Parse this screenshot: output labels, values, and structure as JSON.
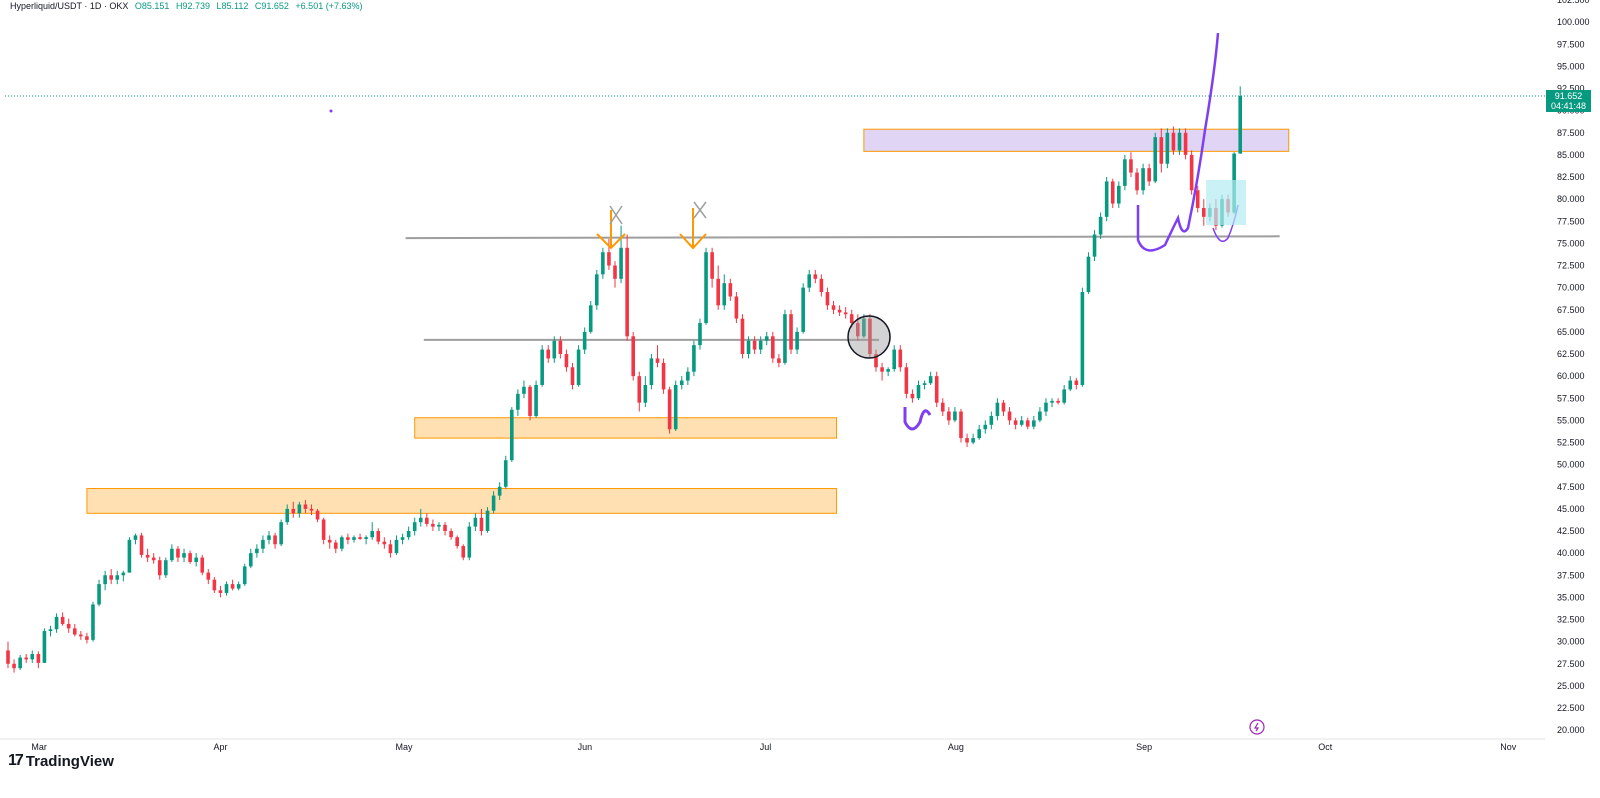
{
  "legend": {
    "symbol": "Hyperliquid/USDT · 1D · OKX",
    "open": "O85.151",
    "high": "H92.739",
    "low": "L85.112",
    "close": "C91.652",
    "change": "+6.501 (+7.63%)"
  },
  "price_tag": {
    "price": "91.652",
    "countdown": "04:41:48"
  },
  "brand": {
    "logo": "17",
    "name": "TradingView"
  },
  "colors": {
    "up": "#089981",
    "down": "#f23645",
    "zone_orange": "#ffe0b2",
    "zone_orange_border": "#ff9800",
    "zone_purple": "#e1d5f5",
    "drawing": "#7e3ff2",
    "hline": "#9e9e9e"
  },
  "chart_data": {
    "type": "candlestick",
    "x_axis": {
      "labels": [
        "Mar",
        "Apr",
        "May",
        "Jun",
        "Jul",
        "Aug",
        "Sep",
        "Oct",
        "Nov"
      ]
    },
    "y_axis": {
      "ylim": [
        19.0,
        102.5
      ],
      "tick_labels": [
        "102.500",
        "100.000",
        "97.500",
        "95.000",
        "92.500",
        "90.000",
        "87.500",
        "85.000",
        "82.500",
        "80.000",
        "77.500",
        "75.000",
        "72.500",
        "70.000",
        "67.500",
        "65.000",
        "62.500",
        "60.000",
        "57.500",
        "55.000",
        "52.500",
        "50.000",
        "47.500",
        "45.000",
        "42.500",
        "40.000",
        "37.500",
        "35.000",
        "32.500",
        "30.000",
        "27.500",
        "25.000",
        "22.500",
        "20.000"
      ]
    },
    "last_price": 91.652,
    "candles": [
      [
        29.0,
        30.0,
        27.0,
        27.5
      ],
      [
        27.5,
        28.0,
        26.5,
        27.0
      ],
      [
        27.0,
        28.5,
        26.8,
        28.2
      ],
      [
        28.2,
        28.6,
        27.6,
        28.0
      ],
      [
        28.0,
        29.0,
        27.6,
        28.6
      ],
      [
        28.6,
        28.9,
        27.0,
        27.6
      ],
      [
        27.6,
        31.5,
        27.6,
        31.2
      ],
      [
        31.2,
        31.8,
        30.6,
        31.4
      ],
      [
        31.4,
        33.2,
        31.0,
        32.8
      ],
      [
        32.8,
        33.3,
        31.8,
        32.0
      ],
      [
        32.0,
        32.6,
        31.0,
        31.5
      ],
      [
        31.5,
        32.0,
        30.6,
        30.8
      ],
      [
        30.8,
        31.2,
        30.2,
        30.6
      ],
      [
        30.6,
        31.0,
        29.8,
        30.2
      ],
      [
        30.2,
        34.5,
        30.0,
        34.2
      ],
      [
        34.2,
        37.0,
        34.0,
        36.5
      ],
      [
        36.5,
        38.0,
        35.8,
        37.5
      ],
      [
        37.5,
        38.2,
        36.5,
        37.0
      ],
      [
        37.0,
        38.0,
        36.5,
        37.5
      ],
      [
        37.5,
        38.0,
        36.8,
        37.8
      ],
      [
        37.8,
        41.8,
        37.8,
        41.5
      ],
      [
        41.5,
        42.2,
        41.0,
        42.0
      ],
      [
        42.0,
        42.3,
        39.5,
        39.8
      ],
      [
        39.8,
        40.5,
        39.0,
        39.5
      ],
      [
        39.5,
        40.0,
        38.8,
        39.2
      ],
      [
        39.2,
        39.6,
        37.0,
        37.5
      ],
      [
        37.5,
        39.5,
        37.2,
        39.2
      ],
      [
        39.2,
        41.0,
        39.0,
        40.5
      ],
      [
        40.5,
        40.8,
        39.0,
        39.5
      ],
      [
        39.5,
        40.5,
        39.0,
        40.0
      ],
      [
        40.0,
        40.3,
        38.8,
        39.0
      ],
      [
        39.0,
        40.0,
        38.5,
        39.5
      ],
      [
        39.5,
        39.8,
        37.5,
        37.8
      ],
      [
        37.8,
        38.2,
        36.5,
        37.0
      ],
      [
        37.0,
        37.3,
        35.5,
        35.8
      ],
      [
        35.8,
        36.3,
        35.0,
        35.5
      ],
      [
        35.5,
        36.8,
        35.2,
        36.5
      ],
      [
        36.5,
        37.0,
        35.8,
        36.0
      ],
      [
        36.0,
        36.8,
        35.8,
        36.5
      ],
      [
        36.5,
        38.8,
        36.3,
        38.5
      ],
      [
        38.5,
        40.5,
        38.3,
        40.0
      ],
      [
        40.0,
        41.0,
        39.5,
        40.5
      ],
      [
        40.5,
        42.0,
        40.0,
        41.5
      ],
      [
        41.5,
        42.5,
        41.0,
        42.0
      ],
      [
        42.0,
        42.3,
        40.5,
        41.0
      ],
      [
        41.0,
        43.8,
        40.8,
        43.5
      ],
      [
        43.5,
        45.5,
        43.2,
        45.0
      ],
      [
        45.0,
        45.8,
        44.0,
        44.5
      ],
      [
        44.5,
        45.8,
        44.0,
        45.5
      ],
      [
        45.5,
        46.0,
        44.5,
        45.0
      ],
      [
        45.0,
        45.5,
        44.3,
        44.8
      ],
      [
        44.8,
        45.0,
        43.5,
        43.8
      ],
      [
        43.8,
        44.0,
        41.0,
        41.5
      ],
      [
        41.5,
        42.0,
        40.5,
        41.2
      ],
      [
        41.2,
        41.5,
        40.0,
        40.5
      ],
      [
        40.5,
        42.0,
        40.2,
        41.8
      ],
      [
        41.8,
        42.2,
        41.0,
        41.5
      ],
      [
        41.5,
        42.0,
        41.2,
        41.8
      ],
      [
        41.8,
        42.2,
        41.5,
        41.6
      ],
      [
        41.6,
        42.0,
        41.0,
        41.8
      ],
      [
        41.8,
        43.5,
        41.5,
        42.5
      ],
      [
        42.5,
        42.8,
        41.0,
        41.3
      ],
      [
        41.3,
        41.8,
        40.5,
        41.0
      ],
      [
        41.0,
        41.5,
        39.5,
        40.0
      ],
      [
        40.0,
        42.0,
        39.8,
        41.5
      ],
      [
        41.5,
        42.2,
        41.0,
        41.8
      ],
      [
        41.8,
        43.0,
        41.5,
        42.5
      ],
      [
        42.5,
        44.0,
        42.0,
        43.5
      ],
      [
        43.5,
        45.0,
        43.0,
        44.0
      ],
      [
        44.0,
        44.5,
        43.0,
        43.3
      ],
      [
        43.3,
        43.8,
        42.5,
        43.0
      ],
      [
        43.0,
        43.5,
        42.5,
        43.2
      ],
      [
        43.2,
        43.5,
        42.0,
        42.5
      ],
      [
        42.5,
        42.8,
        41.5,
        41.8
      ],
      [
        41.8,
        42.0,
        40.5,
        40.8
      ],
      [
        40.8,
        41.0,
        39.2,
        39.5
      ],
      [
        39.5,
        43.5,
        39.2,
        43.0
      ],
      [
        43.0,
        44.5,
        42.5,
        44.0
      ],
      [
        44.0,
        45.0,
        42.0,
        42.5
      ],
      [
        42.5,
        45.2,
        42.3,
        44.8
      ],
      [
        44.8,
        47.0,
        44.5,
        46.5
      ],
      [
        46.5,
        48.0,
        46.0,
        47.5
      ],
      [
        47.5,
        51.0,
        47.3,
        50.5
      ],
      [
        50.5,
        56.5,
        50.3,
        56.2
      ],
      [
        56.2,
        58.5,
        55.5,
        58.0
      ],
      [
        58.0,
        59.5,
        57.5,
        58.8
      ],
      [
        58.8,
        59.0,
        55.0,
        55.5
      ],
      [
        55.5,
        59.5,
        55.3,
        59.0
      ],
      [
        59.0,
        63.5,
        58.8,
        63.0
      ],
      [
        63.0,
        63.5,
        61.5,
        62.0
      ],
      [
        62.0,
        64.5,
        61.5,
        64.0
      ],
      [
        64.0,
        64.5,
        62.0,
        62.5
      ],
      [
        62.5,
        63.0,
        60.5,
        61.0
      ],
      [
        61.0,
        61.5,
        58.5,
        59.0
      ],
      [
        59.0,
        63.5,
        58.8,
        63.0
      ],
      [
        63.0,
        65.5,
        62.5,
        65.0
      ],
      [
        65.0,
        68.5,
        64.8,
        68.0
      ],
      [
        68.0,
        72.0,
        67.5,
        71.5
      ],
      [
        71.5,
        74.5,
        71.0,
        74.0
      ],
      [
        74.0,
        75.5,
        72.0,
        72.5
      ],
      [
        72.5,
        73.0,
        70.0,
        71.0
      ],
      [
        71.0,
        77.0,
        70.5,
        74.5
      ],
      [
        74.5,
        76.0,
        64.0,
        64.5
      ],
      [
        64.5,
        65.0,
        59.5,
        60.0
      ],
      [
        60.0,
        60.5,
        56.0,
        57.0
      ],
      [
        57.0,
        60.0,
        56.5,
        59.0
      ],
      [
        59.0,
        62.5,
        58.5,
        62.0
      ],
      [
        62.0,
        63.5,
        61.0,
        61.5
      ],
      [
        61.5,
        62.0,
        58.0,
        58.5
      ],
      [
        58.5,
        58.8,
        53.5,
        54.0
      ],
      [
        54.0,
        59.5,
        53.8,
        59.0
      ],
      [
        59.0,
        60.0,
        58.5,
        59.5
      ],
      [
        59.5,
        61.0,
        59.0,
        60.5
      ],
      [
        60.5,
        64.0,
        60.0,
        63.5
      ],
      [
        63.5,
        66.5,
        63.0,
        66.0
      ],
      [
        66.0,
        74.5,
        65.8,
        74.0
      ],
      [
        74.0,
        74.5,
        70.0,
        71.0
      ],
      [
        71.0,
        72.5,
        67.5,
        68.0
      ],
      [
        68.0,
        71.5,
        67.5,
        70.5
      ],
      [
        70.5,
        71.0,
        68.5,
        69.0
      ],
      [
        69.0,
        69.5,
        66.0,
        66.5
      ],
      [
        66.5,
        67.0,
        62.0,
        62.5
      ],
      [
        62.5,
        64.5,
        62.0,
        64.0
      ],
      [
        64.0,
        64.5,
        62.5,
        63.0
      ],
      [
        63.0,
        64.5,
        62.5,
        64.0
      ],
      [
        64.0,
        65.0,
        63.5,
        64.5
      ],
      [
        64.5,
        65.0,
        61.5,
        62.0
      ],
      [
        62.0,
        62.5,
        61.0,
        61.5
      ],
      [
        61.5,
        67.5,
        61.3,
        67.0
      ],
      [
        67.0,
        67.5,
        62.5,
        63.0
      ],
      [
        63.0,
        65.5,
        62.5,
        65.0
      ],
      [
        65.0,
        70.5,
        64.8,
        70.0
      ],
      [
        70.0,
        72.0,
        69.5,
        71.5
      ],
      [
        71.5,
        72.0,
        70.5,
        71.0
      ],
      [
        71.0,
        71.5,
        69.0,
        69.5
      ],
      [
        69.5,
        70.0,
        67.5,
        68.0
      ],
      [
        68.0,
        68.5,
        67.0,
        67.5
      ],
      [
        67.5,
        68.0,
        66.8,
        67.2
      ],
      [
        67.2,
        67.8,
        66.5,
        67.0
      ],
      [
        67.0,
        67.5,
        65.5,
        66.0
      ],
      [
        66.0,
        67.0,
        64.0,
        64.5
      ],
      [
        64.5,
        67.0,
        64.3,
        66.5
      ],
      [
        66.5,
        67.0,
        62.0,
        62.5
      ],
      [
        62.5,
        63.0,
        60.5,
        61.0
      ],
      [
        61.0,
        61.5,
        59.5,
        60.5
      ],
      [
        60.5,
        61.0,
        60.0,
        60.8
      ],
      [
        60.8,
        63.5,
        60.5,
        63.0
      ],
      [
        63.0,
        63.5,
        60.5,
        61.0
      ],
      [
        61.0,
        61.5,
        57.5,
        58.0
      ],
      [
        58.0,
        58.5,
        57.0,
        57.5
      ],
      [
        57.5,
        59.5,
        57.3,
        59.0
      ],
      [
        59.0,
        59.5,
        58.5,
        59.2
      ],
      [
        59.2,
        60.5,
        59.0,
        60.0
      ],
      [
        60.0,
        60.5,
        56.5,
        57.0
      ],
      [
        57.0,
        57.5,
        55.5,
        56.0
      ],
      [
        56.0,
        56.5,
        54.5,
        55.0
      ],
      [
        55.0,
        56.5,
        54.8,
        56.0
      ],
      [
        56.0,
        56.3,
        52.5,
        53.0
      ],
      [
        53.0,
        53.5,
        52.0,
        52.5
      ],
      [
        52.5,
        53.5,
        52.3,
        53.0
      ],
      [
        53.0,
        54.5,
        52.8,
        54.0
      ],
      [
        54.0,
        55.0,
        53.5,
        54.5
      ],
      [
        54.5,
        56.0,
        54.0,
        55.5
      ],
      [
        55.5,
        57.5,
        55.0,
        57.0
      ],
      [
        57.0,
        57.3,
        55.5,
        56.0
      ],
      [
        56.0,
        56.5,
        54.5,
        55.0
      ],
      [
        55.0,
        55.3,
        54.0,
        54.5
      ],
      [
        54.5,
        55.5,
        54.3,
        55.0
      ],
      [
        55.0,
        55.3,
        54.0,
        54.3
      ],
      [
        54.3,
        55.5,
        54.0,
        55.0
      ],
      [
        55.0,
        56.5,
        54.8,
        56.0
      ],
      [
        56.0,
        57.5,
        55.5,
        57.0
      ],
      [
        57.0,
        57.5,
        56.5,
        57.2
      ],
      [
        57.2,
        57.5,
        56.8,
        57.0
      ],
      [
        57.0,
        59.0,
        56.8,
        58.5
      ],
      [
        58.5,
        60.0,
        58.3,
        59.5
      ],
      [
        59.5,
        59.8,
        58.5,
        59.0
      ],
      [
        59.0,
        70.0,
        58.8,
        69.5
      ],
      [
        69.5,
        74.0,
        69.3,
        73.5
      ],
      [
        73.5,
        76.5,
        73.0,
        76.0
      ],
      [
        76.0,
        78.5,
        75.5,
        78.0
      ],
      [
        78.0,
        82.5,
        77.5,
        82.0
      ],
      [
        82.0,
        82.3,
        79.0,
        79.5
      ],
      [
        79.5,
        82.0,
        79.0,
        81.5
      ],
      [
        81.5,
        85.0,
        81.0,
        84.5
      ],
      [
        84.5,
        85.3,
        82.5,
        83.0
      ],
      [
        83.0,
        83.5,
        80.5,
        81.0
      ],
      [
        81.0,
        84.0,
        80.5,
        83.5
      ],
      [
        83.5,
        84.0,
        81.5,
        82.0
      ],
      [
        82.0,
        87.5,
        81.8,
        87.0
      ],
      [
        87.0,
        88.0,
        83.0,
        84.0
      ],
      [
        84.0,
        88.0,
        83.5,
        87.5
      ],
      [
        87.5,
        88.2,
        85.0,
        85.5
      ],
      [
        85.5,
        88.0,
        85.0,
        87.5
      ],
      [
        87.5,
        88.0,
        84.5,
        85.0
      ],
      [
        85.0,
        85.5,
        80.5,
        81.0
      ],
      [
        81.0,
        81.5,
        78.5,
        79.0
      ],
      [
        79.0,
        80.0,
        77.0,
        78.0
      ],
      [
        78.0,
        79.5,
        77.5,
        79.0
      ],
      [
        79.0,
        80.0,
        76.5,
        77.0
      ],
      [
        77.0,
        80.5,
        76.8,
        80.0
      ],
      [
        80.0,
        80.5,
        78.0,
        78.5
      ],
      [
        78.5,
        85.3,
        78.3,
        85.15
      ],
      [
        85.151,
        92.739,
        85.112,
        91.652
      ]
    ]
  }
}
